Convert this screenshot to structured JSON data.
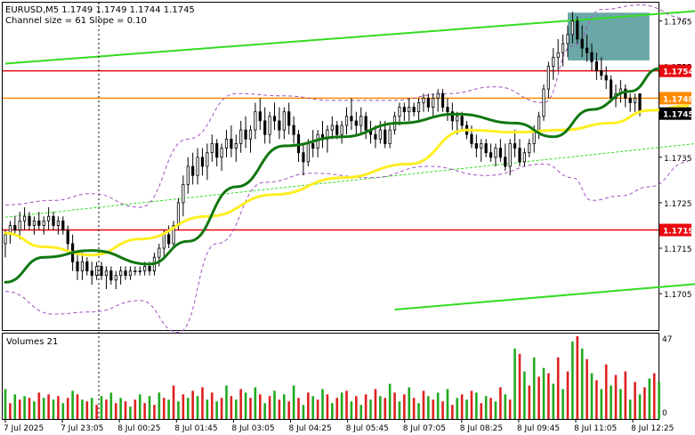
{
  "header": {
    "line1": "EURUSD,M5  1.1749 1.1749 1.1744 1.1745",
    "line2": "Channel size = 61 Slope = 0.10"
  },
  "volume_label": "Volumes 21",
  "chart_data": {
    "type": "candlestick",
    "symbol": "EURUSD",
    "timeframe": "M5",
    "ohlc_last": {
      "open": 1.1749,
      "high": 1.1749,
      "low": 1.1744,
      "close": 1.1745
    },
    "channel_size": 61,
    "slope": 0.1,
    "ylim": [
      1.1697,
      1.1769
    ],
    "y_ticks": [
      "1.1765",
      "1.1755",
      "1.1745",
      "1.1735",
      "1.1725",
      "1.1715",
      "1.1705"
    ],
    "x_ticks": [
      "7 Jul 2025",
      "7 Jul 23:05",
      "8 Jul 00:25",
      "8 Jul 01:45",
      "8 Jul 03:05",
      "8 Jul 04:25",
      "8 Jul 05:45",
      "8 Jul 07:05",
      "8 Jul 08:25",
      "8 Jul 09:45",
      "8 Jul 11:05",
      "8 Jul 12:25"
    ],
    "price_labels": [
      {
        "value": 1.1754,
        "text": "1.1754",
        "color": "#e8080d"
      },
      {
        "value": 1.1748,
        "text": "1.1748",
        "color": "#ff8c00"
      },
      {
        "value": 1.1745,
        "text": "1.1745",
        "color": "#000000"
      },
      {
        "value": 1.1719,
        "text": "1.1719",
        "color": "#e8080d"
      }
    ],
    "horizontal_lines": [
      {
        "value": 1.1754,
        "color": "#e8080d"
      },
      {
        "value": 1.1748,
        "color": "#ff8c00"
      },
      {
        "value": 1.1719,
        "color": "#e8080d"
      }
    ],
    "channel": {
      "color": "#33dd22",
      "upper": [
        [
          0,
          1.17556
        ],
        [
          148,
          1.17675
        ]
      ],
      "middle": [
        [
          0,
          1.17218
        ],
        [
          148,
          1.17385
        ]
      ],
      "lower": [
        [
          81,
          1.17015
        ],
        [
          148,
          1.17075
        ]
      ]
    },
    "highlight_zone": {
      "x": [
        117,
        134
      ],
      "y": [
        1.17563,
        1.17668
      ],
      "color": "#3a8a8a"
    },
    "series": [
      {
        "type": "ma",
        "color": "#ffee22",
        "points": [
          [
            0,
            1.17183
          ],
          [
            8,
            1.17153
          ],
          [
            18,
            1.17135
          ],
          [
            28,
            1.1717
          ],
          [
            42,
            1.1722
          ],
          [
            56,
            1.17268
          ],
          [
            70,
            1.17305
          ],
          [
            84,
            1.17335
          ],
          [
            96,
            1.1741
          ],
          [
            106,
            1.17405
          ],
          [
            116,
            1.1741
          ],
          [
            126,
            1.17425
          ],
          [
            134,
            1.17453
          ],
          [
            142,
            1.17463
          ]
        ]
      },
      {
        "type": "ma",
        "color": "#117711",
        "points": [
          [
            0,
            1.17075
          ],
          [
            8,
            1.1713
          ],
          [
            18,
            1.17145
          ],
          [
            30,
            1.17115
          ],
          [
            38,
            1.17165
          ],
          [
            48,
            1.17285
          ],
          [
            58,
            1.17375
          ],
          [
            70,
            1.17395
          ],
          [
            82,
            1.17425
          ],
          [
            94,
            1.17445
          ],
          [
            106,
            1.17425
          ],
          [
            114,
            1.17395
          ],
          [
            122,
            1.17455
          ],
          [
            130,
            1.17495
          ],
          [
            136,
            1.17545
          ],
          [
            142,
            1.17545
          ]
        ]
      },
      {
        "type": "bollinger",
        "color": "#a050c0",
        "points": [
          [
            0,
            1.17245
          ],
          [
            10,
            1.17255
          ],
          [
            18,
            1.1727
          ],
          [
            28,
            1.1724
          ],
          [
            38,
            1.1739
          ],
          [
            48,
            1.1749
          ],
          [
            58,
            1.17485
          ],
          [
            68,
            1.17475
          ],
          [
            80,
            1.17475
          ],
          [
            92,
            1.1749
          ],
          [
            102,
            1.17505
          ],
          [
            112,
            1.1747
          ],
          [
            118,
            1.17595
          ],
          [
            124,
            1.17675
          ],
          [
            132,
            1.17685
          ],
          [
            142,
            1.17655
          ]
        ]
      },
      {
        "type": "bollinger",
        "color": "#a050c0",
        "points": [
          [
            0,
            1.17055
          ],
          [
            10,
            1.17005
          ],
          [
            18,
            1.1701
          ],
          [
            28,
            1.17035
          ],
          [
            36,
            1.16965
          ],
          [
            44,
            1.1716
          ],
          [
            54,
            1.17295
          ],
          [
            64,
            1.17315
          ],
          [
            76,
            1.17305
          ],
          [
            88,
            1.1733
          ],
          [
            100,
            1.1731
          ],
          [
            112,
            1.17335
          ],
          [
            118,
            1.17305
          ],
          [
            122,
            1.17255
          ],
          [
            128,
            1.17265
          ],
          [
            134,
            1.17285
          ],
          [
            142,
            1.1734
          ]
        ]
      }
    ],
    "candles": [
      [
        1.1716,
        1.1719,
        1.1713,
        1.1718
      ],
      [
        1.1718,
        1.1721,
        1.1716,
        1.172
      ],
      [
        1.172,
        1.1722,
        1.1718,
        1.1719
      ],
      [
        1.1719,
        1.1723,
        1.1717,
        1.1721
      ],
      [
        1.1721,
        1.1724,
        1.1719,
        1.1722
      ],
      [
        1.1722,
        1.1723,
        1.1719,
        1.172
      ],
      [
        1.172,
        1.1722,
        1.1718,
        1.1721
      ],
      [
        1.1721,
        1.1723,
        1.1719,
        1.172
      ],
      [
        1.172,
        1.1722,
        1.1718,
        1.1721
      ],
      [
        1.1721,
        1.1724,
        1.1719,
        1.1722
      ],
      [
        1.1722,
        1.1723,
        1.1719,
        1.172
      ],
      [
        1.172,
        1.1722,
        1.1718,
        1.1721
      ],
      [
        1.1721,
        1.1722,
        1.1718,
        1.1719
      ],
      [
        1.1719,
        1.172,
        1.1714,
        1.1716
      ],
      [
        1.1716,
        1.1718,
        1.171,
        1.1712
      ],
      [
        1.1712,
        1.1714,
        1.1708,
        1.171
      ],
      [
        1.171,
        1.1714,
        1.1708,
        1.1712
      ],
      [
        1.1712,
        1.1713,
        1.1709,
        1.171
      ],
      [
        1.171,
        1.1712,
        1.1707,
        1.1709
      ],
      [
        1.1709,
        1.1712,
        1.1708,
        1.1711
      ],
      [
        1.1711,
        1.1712,
        1.1708,
        1.1709
      ],
      [
        1.1709,
        1.1711,
        1.1706,
        1.171
      ],
      [
        1.171,
        1.1711,
        1.1707,
        1.1708
      ],
      [
        1.1708,
        1.171,
        1.1706,
        1.1709
      ],
      [
        1.1709,
        1.1711,
        1.1707,
        1.171
      ],
      [
        1.171,
        1.1711,
        1.1708,
        1.1709
      ],
      [
        1.1709,
        1.1711,
        1.1708,
        1.171
      ],
      [
        1.171,
        1.1711,
        1.1709,
        1.171
      ],
      [
        1.171,
        1.1711,
        1.1709,
        1.171
      ],
      [
        1.171,
        1.1712,
        1.1709,
        1.1711
      ],
      [
        1.1711,
        1.1712,
        1.1709,
        1.171
      ],
      [
        1.171,
        1.1714,
        1.1709,
        1.1713
      ],
      [
        1.1713,
        1.1716,
        1.1711,
        1.1715
      ],
      [
        1.1715,
        1.1719,
        1.1713,
        1.1718
      ],
      [
        1.1718,
        1.172,
        1.1715,
        1.1716
      ],
      [
        1.1716,
        1.1721,
        1.1715,
        1.172
      ],
      [
        1.172,
        1.1726,
        1.1719,
        1.1725
      ],
      [
        1.1725,
        1.1731,
        1.1722,
        1.1729
      ],
      [
        1.1729,
        1.1735,
        1.1727,
        1.1733
      ],
      [
        1.1733,
        1.1736,
        1.1729,
        1.1731
      ],
      [
        1.1731,
        1.1737,
        1.1729,
        1.1735
      ],
      [
        1.1735,
        1.1737,
        1.1731,
        1.1733
      ],
      [
        1.1733,
        1.1738,
        1.173,
        1.1736
      ],
      [
        1.1736,
        1.174,
        1.1734,
        1.1738
      ],
      [
        1.1738,
        1.1739,
        1.1733,
        1.1735
      ],
      [
        1.1735,
        1.1738,
        1.1732,
        1.1737
      ],
      [
        1.1737,
        1.1741,
        1.1735,
        1.1739
      ],
      [
        1.1739,
        1.1742,
        1.1735,
        1.1737
      ],
      [
        1.1737,
        1.174,
        1.1734,
        1.1738
      ],
      [
        1.1738,
        1.1743,
        1.1736,
        1.1741
      ],
      [
        1.1741,
        1.1744,
        1.1737,
        1.1739
      ],
      [
        1.1739,
        1.1742,
        1.1736,
        1.1741
      ],
      [
        1.1741,
        1.1747,
        1.1739,
        1.1745
      ],
      [
        1.1745,
        1.1748,
        1.1741,
        1.1743
      ],
      [
        1.1743,
        1.1746,
        1.1738,
        1.174
      ],
      [
        1.174,
        1.1745,
        1.1738,
        1.1744
      ],
      [
        1.1744,
        1.1747,
        1.1741,
        1.1743
      ],
      [
        1.1743,
        1.1746,
        1.1739,
        1.1741
      ],
      [
        1.1741,
        1.1746,
        1.1739,
        1.1745
      ],
      [
        1.1745,
        1.1747,
        1.174,
        1.1742
      ],
      [
        1.1742,
        1.1744,
        1.1738,
        1.174
      ],
      [
        1.174,
        1.1741,
        1.1734,
        1.1736
      ],
      [
        1.1736,
        1.1738,
        1.1731,
        1.1734
      ],
      [
        1.1734,
        1.1739,
        1.1733,
        1.1738
      ],
      [
        1.1738,
        1.1741,
        1.1735,
        1.1737
      ],
      [
        1.1737,
        1.1741,
        1.1735,
        1.174
      ],
      [
        1.174,
        1.1743,
        1.1737,
        1.1739
      ],
      [
        1.1739,
        1.1742,
        1.1736,
        1.1741
      ],
      [
        1.1741,
        1.1744,
        1.1739,
        1.1742
      ],
      [
        1.1742,
        1.1743,
        1.1739,
        1.174
      ],
      [
        1.174,
        1.1743,
        1.1738,
        1.1742
      ],
      [
        1.1742,
        1.1746,
        1.174,
        1.1744
      ],
      [
        1.1744,
        1.1748,
        1.1741,
        1.1743
      ],
      [
        1.1743,
        1.1745,
        1.174,
        1.1742
      ],
      [
        1.1742,
        1.1746,
        1.174,
        1.1744
      ],
      [
        1.1744,
        1.1745,
        1.1739,
        1.1741
      ],
      [
        1.1741,
        1.1743,
        1.1738,
        1.174
      ],
      [
        1.174,
        1.1742,
        1.1737,
        1.1739
      ],
      [
        1.1739,
        1.1743,
        1.1738,
        1.1741
      ],
      [
        1.1741,
        1.1743,
        1.1737,
        1.1738
      ],
      [
        1.1738,
        1.1742,
        1.1737,
        1.1741
      ],
      [
        1.1741,
        1.1745,
        1.174,
        1.1744
      ],
      [
        1.1744,
        1.1747,
        1.1742,
        1.1746
      ],
      [
        1.1746,
        1.1747,
        1.1743,
        1.1745
      ],
      [
        1.1745,
        1.1748,
        1.1743,
        1.1746
      ],
      [
        1.1746,
        1.1747,
        1.1744,
        1.1745
      ],
      [
        1.1745,
        1.1748,
        1.1743,
        1.1747
      ],
      [
        1.1747,
        1.1749,
        1.1745,
        1.1748
      ],
      [
        1.1748,
        1.1749,
        1.1745,
        1.1746
      ],
      [
        1.1746,
        1.1749,
        1.1744,
        1.1748
      ],
      [
        1.1748,
        1.175,
        1.1745,
        1.1749
      ],
      [
        1.1749,
        1.175,
        1.1745,
        1.1746
      ],
      [
        1.1746,
        1.1748,
        1.1743,
        1.1745
      ],
      [
        1.1745,
        1.1747,
        1.1741,
        1.1743
      ],
      [
        1.1743,
        1.1745,
        1.174,
        1.1744
      ],
      [
        1.1744,
        1.1745,
        1.1741,
        1.1742
      ],
      [
        1.1742,
        1.1743,
        1.1739,
        1.174
      ],
      [
        1.174,
        1.1742,
        1.1737,
        1.1738
      ],
      [
        1.1738,
        1.174,
        1.1735,
        1.1737
      ],
      [
        1.1737,
        1.1739,
        1.1734,
        1.1738
      ],
      [
        1.1738,
        1.1739,
        1.1735,
        1.1736
      ],
      [
        1.1736,
        1.1738,
        1.1734,
        1.1735
      ],
      [
        1.1735,
        1.1738,
        1.1733,
        1.1737
      ],
      [
        1.1737,
        1.1739,
        1.1734,
        1.1735
      ],
      [
        1.1735,
        1.1738,
        1.1732,
        1.1733
      ],
      [
        1.1733,
        1.1739,
        1.1731,
        1.1738
      ],
      [
        1.1738,
        1.1741,
        1.1735,
        1.1737
      ],
      [
        1.1737,
        1.1739,
        1.1733,
        1.1734
      ],
      [
        1.1734,
        1.1737,
        1.1733,
        1.1736
      ],
      [
        1.1736,
        1.1739,
        1.1735,
        1.1738
      ],
      [
        1.1738,
        1.1742,
        1.1736,
        1.1741
      ],
      [
        1.1741,
        1.1745,
        1.1739,
        1.1744
      ],
      [
        1.1744,
        1.1751,
        1.1743,
        1.175
      ],
      [
        1.175,
        1.1756,
        1.1748,
        1.1755
      ],
      [
        1.1755,
        1.1759,
        1.1752,
        1.1757
      ],
      [
        1.1757,
        1.1761,
        1.1754,
        1.1758
      ],
      [
        1.1758,
        1.1762,
        1.1755,
        1.176
      ],
      [
        1.176,
        1.1764,
        1.1757,
        1.1762
      ],
      [
        1.1762,
        1.1767,
        1.176,
        1.1765
      ],
      [
        1.1765,
        1.1766,
        1.176,
        1.1761
      ],
      [
        1.1761,
        1.1764,
        1.1757,
        1.1759
      ],
      [
        1.1759,
        1.1762,
        1.1756,
        1.1758
      ],
      [
        1.1758,
        1.176,
        1.1754,
        1.1756
      ],
      [
        1.1756,
        1.1758,
        1.1752,
        1.1754
      ],
      [
        1.1754,
        1.1757,
        1.1752,
        1.1753
      ],
      [
        1.1753,
        1.1755,
        1.175,
        1.1752
      ],
      [
        1.1752,
        1.1753,
        1.1747,
        1.1748
      ],
      [
        1.1748,
        1.1751,
        1.1746,
        1.1749
      ],
      [
        1.1749,
        1.1752,
        1.1747,
        1.175
      ],
      [
        1.175,
        1.1751,
        1.1746,
        1.1748
      ],
      [
        1.1748,
        1.1749,
        1.1745,
        1.1747
      ],
      [
        1.1747,
        1.1749,
        1.1745,
        1.1748
      ],
      [
        1.1749,
        1.1749,
        1.1744,
        1.1745
      ]
    ],
    "volumes": [
      17,
      9,
      14,
      11,
      13,
      12,
      10,
      15,
      12,
      14,
      11,
      13,
      9,
      12,
      16,
      14,
      11,
      10,
      12,
      8,
      13,
      11,
      15,
      9,
      12,
      10,
      7,
      11,
      14,
      9,
      13,
      8,
      15,
      12,
      11,
      19,
      10,
      14,
      12,
      16,
      13,
      18,
      11,
      15,
      10,
      12,
      19,
      13,
      11,
      17,
      15,
      12,
      18,
      14,
      9,
      13,
      16,
      11,
      14,
      10,
      19,
      12,
      8,
      15,
      13,
      11,
      17,
      14,
      9,
      12,
      15,
      16,
      10,
      13,
      8,
      14,
      11,
      17,
      13,
      12,
      20,
      15,
      10,
      14,
      18,
      12,
      9,
      16,
      13,
      11,
      15,
      10,
      17,
      8,
      12,
      14,
      11,
      16,
      15,
      9,
      13,
      12,
      10,
      18,
      14,
      11,
      40,
      37,
      27,
      19,
      35,
      24,
      29,
      26,
      20,
      35,
      17,
      27,
      44,
      47,
      40,
      34,
      26,
      22,
      17,
      31,
      19,
      25,
      17,
      27,
      11,
      21,
      14,
      18,
      23,
      26,
      21
    ],
    "volume_axis": [
      "47",
      "0"
    ]
  }
}
